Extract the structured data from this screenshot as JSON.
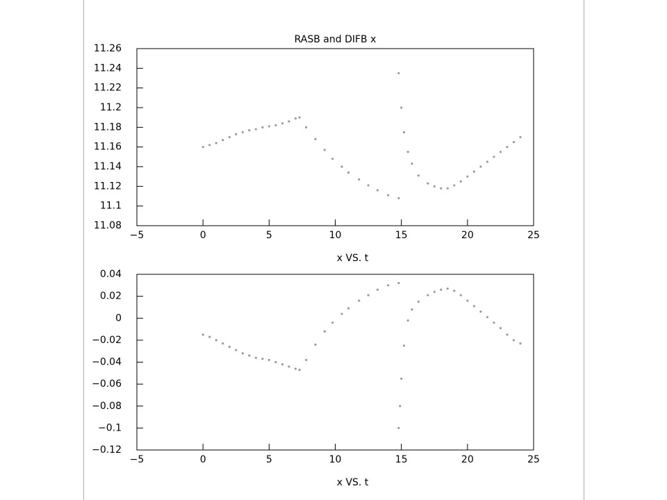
{
  "chart_data": [
    {
      "type": "scatter",
      "title": "RASB and DIFB x",
      "x_label": "x VS. t",
      "color": "#9a9a9a",
      "x": [
        0,
        0.5,
        1,
        1.5,
        2,
        2.5,
        3,
        3.5,
        4,
        4.5,
        5,
        5.5,
        6,
        6.5,
        7,
        7.3,
        7.8,
        8.5,
        9.2,
        9.8,
        10.5,
        11,
        11.8,
        12.5,
        13.2,
        14,
        14.8,
        14.8,
        15,
        15.2,
        15.5,
        15.8,
        16.3,
        17,
        17.5,
        18,
        18.5,
        19,
        19.5,
        20,
        20.5,
        21,
        21.5,
        22,
        22.5,
        23,
        23.5,
        24
      ],
      "values": [
        11.16,
        11.162,
        11.164,
        11.167,
        11.17,
        11.173,
        11.175,
        11.177,
        11.178,
        11.18,
        11.181,
        11.182,
        11.184,
        11.186,
        11.189,
        11.19,
        11.18,
        11.168,
        11.157,
        11.148,
        11.14,
        11.134,
        11.127,
        11.121,
        11.116,
        11.111,
        11.108,
        11.235,
        11.2,
        11.175,
        11.155,
        11.143,
        11.131,
        11.123,
        11.12,
        11.118,
        11.118,
        11.121,
        11.125,
        11.13,
        11.135,
        11.14,
        11.145,
        11.15,
        11.155,
        11.16,
        11.165,
        11.17
      ],
      "xlim": [
        -5,
        25
      ],
      "xticks": [
        {
          "value": -5,
          "label": "−5"
        },
        0,
        5,
        10,
        15,
        20,
        25
      ],
      "ylim": [
        11.08,
        11.26
      ],
      "yticks": [
        11.08,
        11.1,
        11.12,
        11.14,
        11.16,
        11.18,
        11.2,
        11.22,
        11.24,
        11.26
      ]
    },
    {
      "type": "scatter",
      "x_label": "x VS. t",
      "color": "#9a9a9a",
      "x": [
        0,
        0.5,
        1,
        1.5,
        2,
        2.5,
        3,
        3.5,
        4,
        4.5,
        5,
        5.5,
        6,
        6.5,
        7,
        7.3,
        7.8,
        8.5,
        9.2,
        9.8,
        10.5,
        11,
        11.8,
        12.5,
        13.2,
        14,
        14.8,
        14.8,
        14.9,
        15,
        15.2,
        15.5,
        15.8,
        16.3,
        17,
        17.5,
        18,
        18.5,
        19,
        19.5,
        20,
        20.5,
        21,
        21.5,
        22,
        22.5,
        23,
        23.5,
        24
      ],
      "values": [
        -0.015,
        -0.017,
        -0.02,
        -0.023,
        -0.026,
        -0.029,
        -0.032,
        -0.034,
        -0.036,
        -0.037,
        -0.038,
        -0.04,
        -0.042,
        -0.044,
        -0.046,
        -0.047,
        -0.038,
        -0.024,
        -0.012,
        -0.004,
        0.004,
        0.009,
        0.016,
        0.021,
        0.026,
        0.03,
        0.032,
        -0.1,
        -0.08,
        -0.055,
        -0.025,
        -0.002,
        0.008,
        0.015,
        0.021,
        0.024,
        0.026,
        0.027,
        0.025,
        0.021,
        0.016,
        0.011,
        0.006,
        0.001,
        -0.004,
        -0.009,
        -0.015,
        -0.02,
        -0.023
      ],
      "xlim": [
        -5,
        25
      ],
      "xticks": [
        {
          "value": -5,
          "label": "−5"
        },
        0,
        5,
        10,
        15,
        20,
        25
      ],
      "ylim": [
        -0.12,
        0.04
      ],
      "yticks": [
        {
          "value": -0.12,
          "label": "−0.12"
        },
        {
          "value": -0.1,
          "label": "−0.1"
        },
        {
          "value": -0.08,
          "label": "−0.08"
        },
        {
          "value": -0.06,
          "label": "−0.06"
        },
        {
          "value": -0.04,
          "label": "−0.04"
        },
        {
          "value": -0.02,
          "label": "−0.02"
        },
        0,
        0.02,
        0.04
      ]
    }
  ]
}
